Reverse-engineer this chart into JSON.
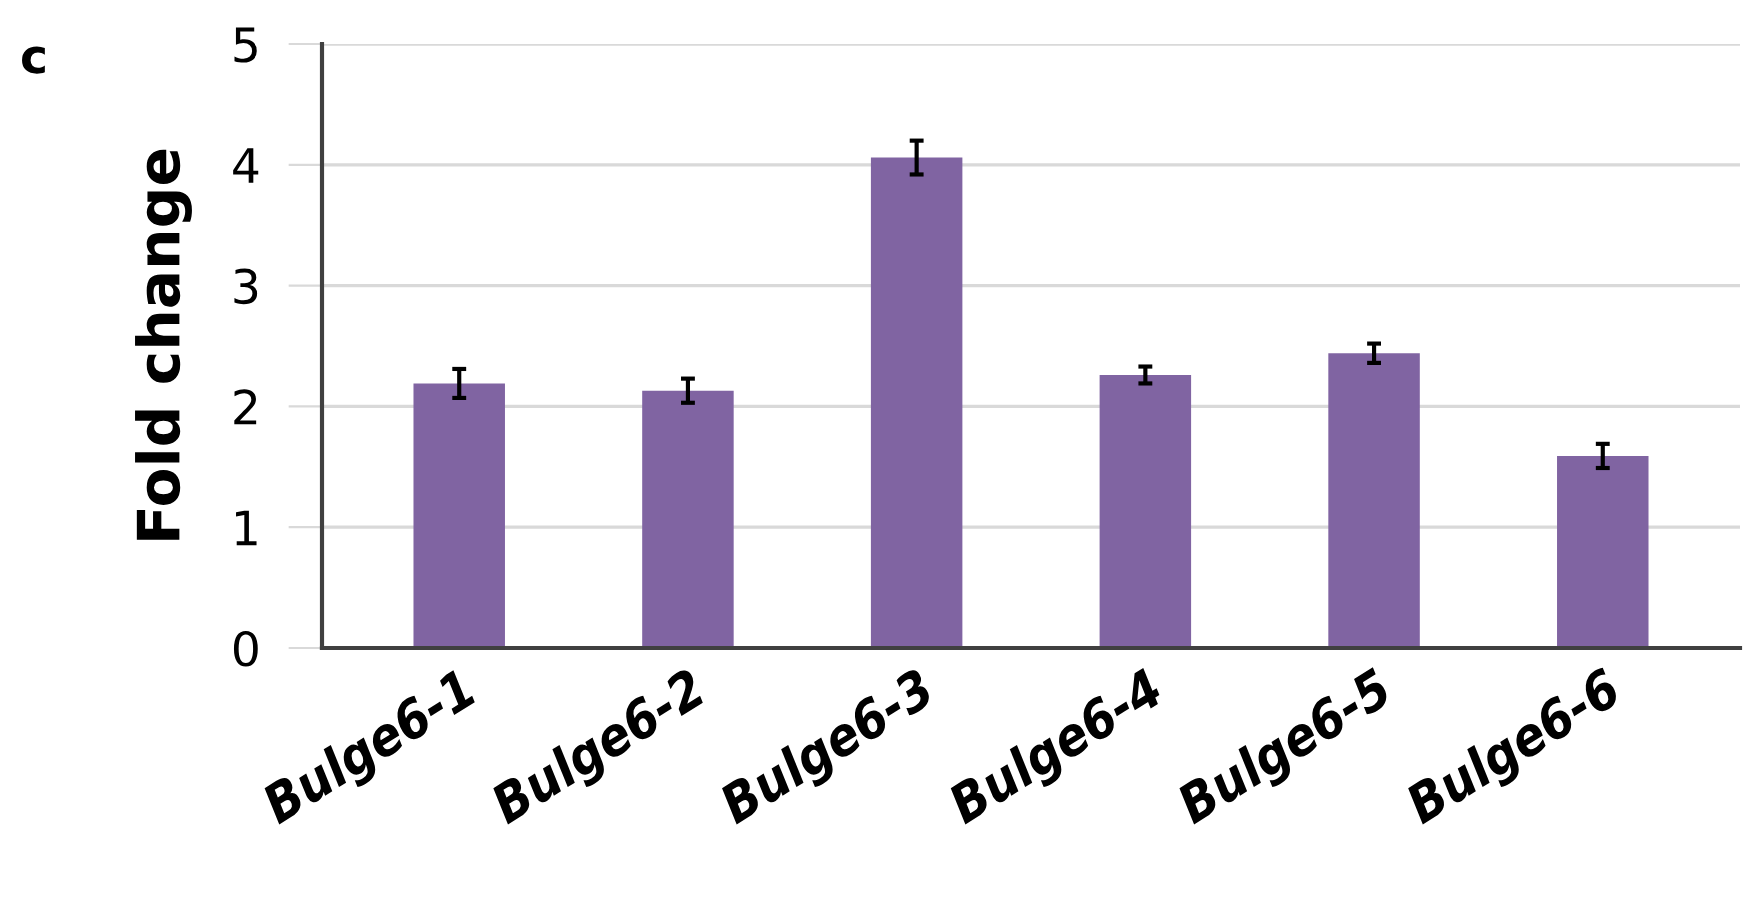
{
  "chart_data": {
    "type": "bar",
    "ylabel": "Fold change",
    "annotations": [
      "c"
    ],
    "categories": [
      "Bulge6-1",
      "Bulge6-2",
      "Bulge6-3",
      "Bulge6-4",
      "Bulge6-5",
      "Bulge6-6"
    ],
    "values": [
      2.19,
      2.13,
      4.06,
      2.26,
      2.44,
      1.59
    ],
    "errors": [
      0.12,
      0.1,
      0.14,
      0.07,
      0.08,
      0.1
    ],
    "color": "#8064a2",
    "ylim": [
      0,
      5
    ],
    "yticks": [
      0,
      1,
      2,
      3,
      4,
      5
    ],
    "grid": "y"
  }
}
